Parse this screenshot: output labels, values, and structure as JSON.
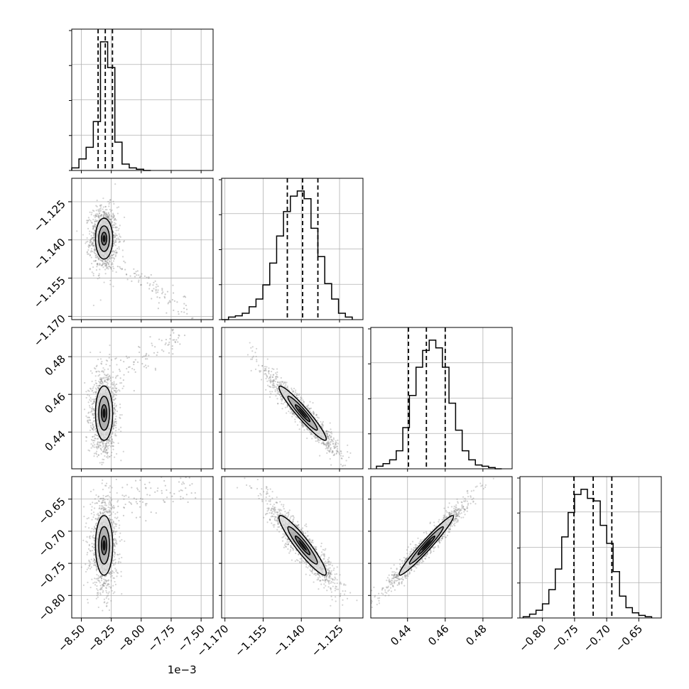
{
  "chart_data": {
    "type": "corner",
    "grid": true,
    "parameters": [
      {
        "range": [
          -8.58,
          -7.4
        ],
        "offset_label": "1e−3",
        "ticks": [
          -8.5,
          -8.25,
          -8.0,
          -7.75,
          -7.5
        ],
        "tick_labels": [
          "−8.50",
          "−8.25",
          "−8.00",
          "−7.75",
          "−7.50"
        ],
        "hist_bins": [
          -8.58,
          -8.52,
          -8.46,
          -8.4,
          -8.34,
          -8.28,
          -8.22,
          -8.16,
          -8.1,
          -8.04,
          -7.98,
          -7.92
        ],
        "hist_counts": [
          0.02,
          0.09,
          0.18,
          0.38,
          1.0,
          0.8,
          0.22,
          0.05,
          0.02,
          0.01,
          0.0
        ],
        "quantiles": [
          -8.36,
          -8.3,
          -8.24
        ]
      },
      {
        "range": [
          -1.1713,
          -1.1158
        ],
        "ticks": [
          -1.17,
          -1.155,
          -1.14,
          -1.125
        ],
        "tick_labels": [
          "−1.170",
          "−1.155",
          "−1.140",
          "−1.125"
        ],
        "hist_bins": [
          -1.1713,
          -1.1686,
          -1.1659,
          -1.1632,
          -1.1605,
          -1.1578,
          -1.1551,
          -1.1524,
          -1.1497,
          -1.147,
          -1.1443,
          -1.1416,
          -1.1389,
          -1.1362,
          -1.1335,
          -1.1308,
          -1.1281,
          -1.1254,
          -1.1227,
          -1.12
        ],
        "hist_counts": [
          0.0,
          0.02,
          0.03,
          0.05,
          0.1,
          0.16,
          0.27,
          0.44,
          0.65,
          0.84,
          0.96,
          1.0,
          0.94,
          0.71,
          0.49,
          0.28,
          0.16,
          0.05,
          0.02
        ],
        "quantiles": [
          -1.1455,
          -1.1395,
          -1.1335
        ]
      },
      {
        "range": [
          0.4205,
          0.4955
        ],
        "ticks": [
          0.44,
          0.46,
          0.48
        ],
        "tick_labels": [
          "0.44",
          "0.46",
          "0.48"
        ],
        "hist_bins": [
          0.4235,
          0.427,
          0.4305,
          0.434,
          0.4375,
          0.441,
          0.4445,
          0.448,
          0.4515,
          0.455,
          0.4585,
          0.462,
          0.4655,
          0.469,
          0.4725,
          0.476,
          0.4795,
          0.483,
          0.4865,
          0.49
        ],
        "hist_counts": [
          0.02,
          0.04,
          0.07,
          0.14,
          0.32,
          0.57,
          0.79,
          0.92,
          1.0,
          0.94,
          0.79,
          0.51,
          0.3,
          0.14,
          0.07,
          0.03,
          0.02,
          0.01,
          0.0
        ],
        "quantiles": [
          0.4405,
          0.45,
          0.46
        ]
      },
      {
        "range": [
          -0.835,
          -0.615
        ],
        "ticks": [
          -0.8,
          -0.75,
          -0.7,
          -0.65
        ],
        "tick_labels": [
          "−0.80",
          "−0.75",
          "−0.70",
          "−0.65"
        ],
        "hist_bins": [
          -0.83,
          -0.82,
          -0.81,
          -0.8,
          -0.79,
          -0.78,
          -0.77,
          -0.76,
          -0.75,
          -0.74,
          -0.73,
          -0.72,
          -0.71,
          -0.7,
          -0.69,
          -0.68,
          -0.67,
          -0.66,
          -0.65,
          -0.64,
          -0.63
        ],
        "hist_counts": [
          0.01,
          0.03,
          0.06,
          0.11,
          0.22,
          0.38,
          0.63,
          0.82,
          0.96,
          1.0,
          0.93,
          0.91,
          0.72,
          0.58,
          0.36,
          0.17,
          0.08,
          0.04,
          0.02,
          0.01
        ],
        "quantiles": [
          -0.751,
          -0.721,
          -0.692
        ]
      }
    ],
    "pairs": [
      {
        "x": 0,
        "y": 1,
        "center": [
          -8.31,
          -1.1395
        ],
        "sigma": [
          0.045,
          0.005
        ],
        "rho": 0.0,
        "levels": [
          0.5,
          1.0,
          1.6
        ],
        "tail": [
          [
            -8.2,
            -1.15
          ],
          [
            -7.6,
            -1.168
          ]
        ]
      },
      {
        "x": 0,
        "y": 2,
        "center": [
          -8.31,
          0.45
        ],
        "sigma": [
          0.045,
          0.009
        ],
        "rho": 0.0,
        "levels": [
          0.5,
          1.0,
          1.6
        ],
        "tail": [
          [
            -8.25,
            0.47
          ],
          [
            -7.6,
            0.492
          ]
        ]
      },
      {
        "x": 0,
        "y": 3,
        "center": [
          -8.31,
          -0.722
        ],
        "sigma": [
          0.045,
          0.029
        ],
        "rho": 0.0,
        "levels": [
          0.5,
          1.0,
          1.6
        ],
        "tail": [
          [
            -8.25,
            -0.66
          ],
          [
            -7.55,
            -0.625
          ]
        ]
      },
      {
        "x": 1,
        "y": 2,
        "center": [
          -1.1395,
          0.45
        ],
        "sigma": [
          0.0058,
          0.009
        ],
        "rho": -0.95,
        "levels": [
          0.5,
          1.0,
          1.6
        ],
        "tail": null
      },
      {
        "x": 1,
        "y": 3,
        "center": [
          -1.1395,
          -0.722
        ],
        "sigma": [
          0.0058,
          0.029
        ],
        "rho": -0.93,
        "levels": [
          0.5,
          1.0,
          1.6
        ],
        "tail": null
      },
      {
        "x": 2,
        "y": 3,
        "center": [
          0.45,
          -0.722
        ],
        "sigma": [
          0.009,
          0.029
        ],
        "rho": 0.97,
        "levels": [
          0.5,
          1.0,
          1.6
        ],
        "tail": null
      }
    ],
    "colors": {
      "line": "#000000",
      "grid": "#b0b0b0",
      "scatter": "#808080"
    }
  }
}
